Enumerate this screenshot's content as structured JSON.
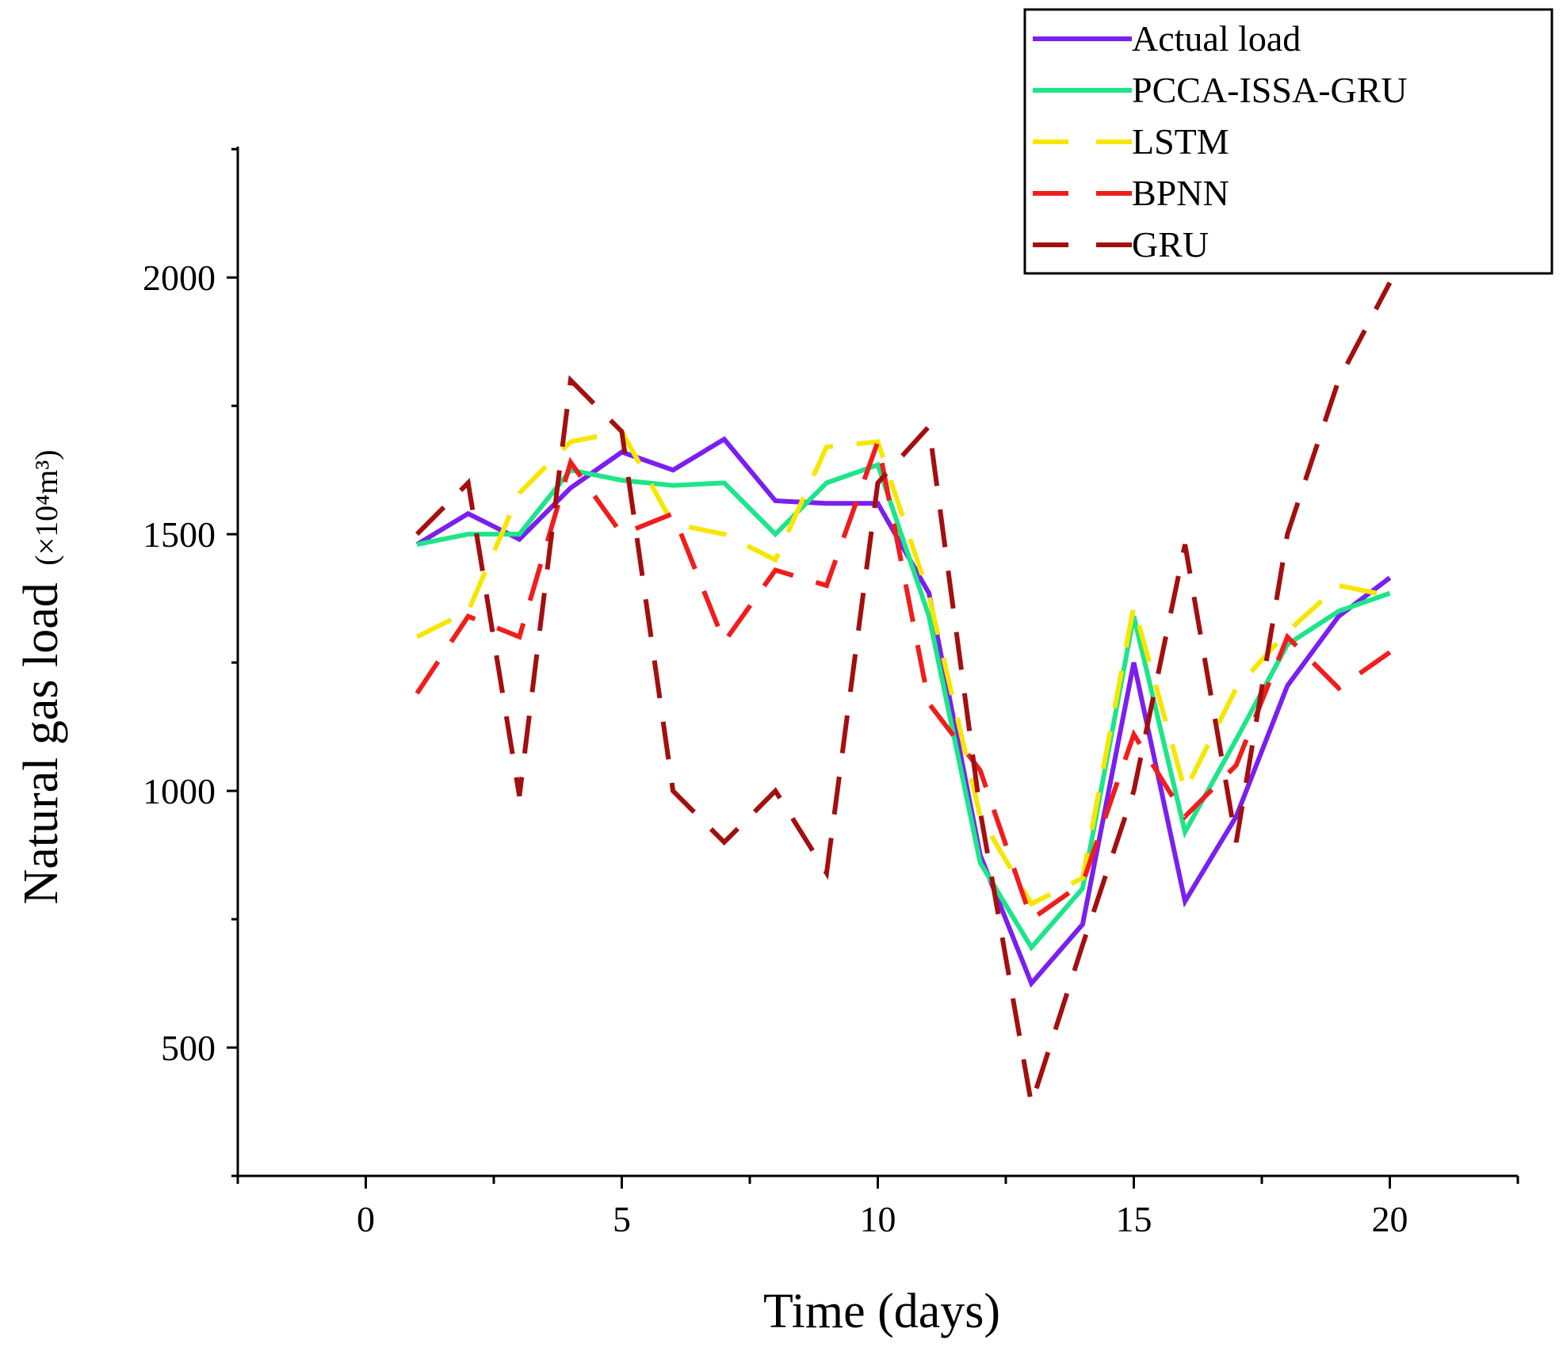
{
  "chart_data": {
    "type": "line",
    "xlabel": "Time (days)",
    "ylabel_main": "Natural gas load",
    "ylabel_unit": "(×10⁴m³)",
    "xlim": [
      -2.5,
      22.5
    ],
    "ylim": [
      250,
      2255
    ],
    "x_ticks": [
      0,
      5,
      10,
      15,
      20
    ],
    "y_ticks": [
      500,
      1000,
      1500,
      2000
    ],
    "x_minor_step": 2.5,
    "y_minor_step": 250,
    "grid": false,
    "legend_position": "top-right",
    "series": [
      {
        "name": "Actual load",
        "color": "#7a1ff0",
        "style": "solid",
        "x": [
          1,
          2,
          3,
          4,
          5,
          6,
          7,
          8,
          9,
          10,
          11,
          12,
          13,
          14,
          15,
          16,
          17,
          18,
          19,
          20
        ],
        "values": [
          1480,
          1540,
          1490,
          1590,
          1660,
          1625,
          1685,
          1565,
          1560,
          1560,
          1385,
          875,
          625,
          740,
          1250,
          785,
          950,
          1205,
          1340,
          1415
        ]
      },
      {
        "name": "PCCA-ISSA-GRU",
        "color": "#1de58a",
        "style": "solid",
        "x": [
          1,
          2,
          3,
          4,
          5,
          6,
          7,
          8,
          9,
          10,
          11,
          12,
          13,
          14,
          15,
          16,
          17,
          18,
          19,
          20
        ],
        "values": [
          1480,
          1500,
          1500,
          1625,
          1605,
          1595,
          1600,
          1500,
          1600,
          1635,
          1340,
          860,
          695,
          810,
          1340,
          920,
          1100,
          1285,
          1350,
          1385
        ]
      },
      {
        "name": "LSTM",
        "color": "#f7e600",
        "style": "dashed",
        "x": [
          1,
          2,
          3,
          4,
          5,
          6,
          7,
          8,
          9,
          10,
          11,
          12,
          13,
          14,
          15,
          16,
          17,
          18,
          19,
          20
        ],
        "values": [
          1300,
          1350,
          1580,
          1680,
          1700,
          1520,
          1500,
          1450,
          1670,
          1680,
          1380,
          950,
          780,
          830,
          1360,
          1000,
          1200,
          1310,
          1400,
          1380
        ]
      },
      {
        "name": "BPNN",
        "color": "#f21c1c",
        "style": "dashed",
        "x": [
          1,
          2,
          3,
          4,
          5,
          6,
          7,
          8,
          9,
          10,
          11,
          12,
          13,
          14,
          15,
          16,
          17,
          18,
          19,
          20
        ],
        "values": [
          1190,
          1340,
          1300,
          1640,
          1500,
          1540,
          1290,
          1430,
          1400,
          1680,
          1170,
          1040,
          750,
          820,
          1110,
          950,
          1050,
          1300,
          1200,
          1270
        ]
      },
      {
        "name": "GRU",
        "color": "#a30f0f",
        "style": "dashed",
        "x": [
          1,
          2,
          3,
          4,
          5,
          6,
          7,
          8,
          9,
          10,
          11,
          12,
          13,
          14,
          15,
          16,
          17,
          18,
          19,
          20
        ],
        "values": [
          1500,
          1600,
          990,
          1800,
          1700,
          1000,
          900,
          1000,
          840,
          1600,
          1710,
          960,
          390,
          700,
          1000,
          1480,
          900,
          1500,
          1800,
          1990
        ]
      }
    ]
  }
}
